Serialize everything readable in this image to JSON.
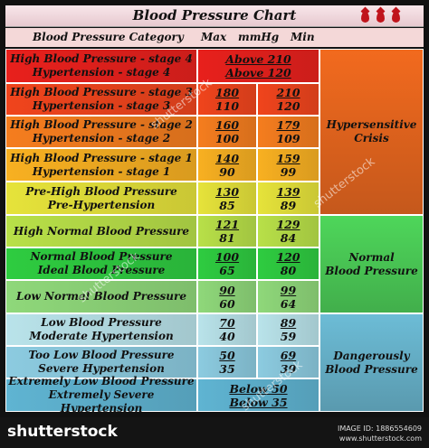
{
  "title": "Blood Pressure Chart",
  "header": {
    "category": "Blood Pressure Category",
    "max": "Max",
    "unit": "mmHg",
    "min": "Min"
  },
  "chart_data": {
    "type": "table",
    "title": "Blood Pressure Chart",
    "columns": [
      "Blood Pressure Category",
      "Max mmHg",
      "Min"
    ],
    "rows": [
      {
        "category": [
          "High Blood Pressure - stage 4",
          "Hypertension - stage 4"
        ],
        "max": "Above 210",
        "min": "Above 120",
        "color": "#e8201c",
        "merged": true
      },
      {
        "category": [
          "High Blood Pressure - stage 3",
          "Hypertension - stage 3"
        ],
        "max": [
          "180",
          "110"
        ],
        "min": [
          "210",
          "120"
        ],
        "color": "#f0441c"
      },
      {
        "category": [
          "High Blood Pressure - stage 2",
          "Hypertension - stage 2"
        ],
        "max": [
          "160",
          "100"
        ],
        "min": [
          "179",
          "109"
        ],
        "color": "#f57d1e"
      },
      {
        "category": [
          "High Blood Pressure - stage 1",
          "Hypertension - stage 1"
        ],
        "max": [
          "140",
          "90"
        ],
        "min": [
          "159",
          "99"
        ],
        "color": "#f8b021"
      },
      {
        "category": [
          "Pre-High Blood Pressure",
          "Pre-Hypertension"
        ],
        "max": [
          "130",
          "85"
        ],
        "min": [
          "139",
          "89"
        ],
        "color": "#e6e33a"
      },
      {
        "category": [
          "High Normal Blood Pressure"
        ],
        "max": [
          "121",
          "81"
        ],
        "min": [
          "129",
          "84"
        ],
        "color": "#b8e048"
      },
      {
        "category": [
          "Normal Blood Pressure",
          "Ideal Blood Pressure"
        ],
        "max": [
          "100",
          "65"
        ],
        "min": [
          "120",
          "80"
        ],
        "color": "#2ecc40"
      },
      {
        "category": [
          "Low Normal Blood Pressure"
        ],
        "max": [
          "90",
          "60"
        ],
        "min": [
          "99",
          "64"
        ],
        "color": "#8fd87a"
      },
      {
        "category": [
          "Low Blood Pressure",
          "Moderate Hypertension"
        ],
        "max": [
          "70",
          "40"
        ],
        "min": [
          "89",
          "59"
        ],
        "color": "#b9e3ea"
      },
      {
        "category": [
          "Too Low Blood Pressure",
          "Severe Hypertension"
        ],
        "max": [
          "50",
          "35"
        ],
        "min": [
          "69",
          "39"
        ],
        "color": "#8ccbe0"
      },
      {
        "category": [
          "Extremely Low Blood Pressure",
          "Extremely Severe Hypertension"
        ],
        "max": "Below 50",
        "min": "Below 35",
        "color": "#5fb4d2",
        "merged": true
      }
    ],
    "groups": [
      {
        "label": [
          "Hypersensitive",
          "Crisis"
        ],
        "rows": [
          0,
          4
        ],
        "color": "#f26a1e"
      },
      {
        "label": [
          "Normal",
          "Blood Pressure"
        ],
        "rows": [
          5,
          7
        ],
        "color": "#4ed65a"
      },
      {
        "label": [
          "Dangerously",
          "Blood Pressure"
        ],
        "rows": [
          8,
          10
        ],
        "color": "#6cbcd6"
      }
    ]
  },
  "watermark": "shutterstock",
  "footer": {
    "brand": "shutterstock",
    "image_id": "IMAGE ID: 1886554609",
    "site": "www.shutterstock.com"
  }
}
